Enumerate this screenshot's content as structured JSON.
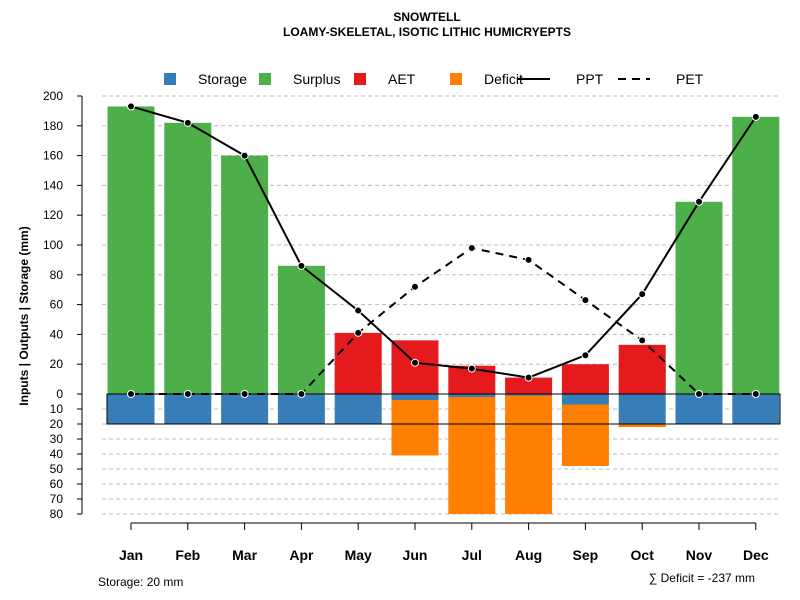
{
  "chart_data": {
    "type": "bar",
    "title": "SNOWTELL",
    "subtitle": "LOAMY-SKELETAL, ISOTIC LITHIC HUMICRYEPTS",
    "ylabel": "Inputs | Outputs | Storage    (mm)",
    "categories": [
      "Jan",
      "Feb",
      "Mar",
      "Apr",
      "May",
      "Jun",
      "Jul",
      "Aug",
      "Sep",
      "Oct",
      "Nov",
      "Dec"
    ],
    "upper_ticks": [
      "0",
      "20",
      "40",
      "60",
      "80",
      "100",
      "120",
      "140",
      "160",
      "180",
      "200"
    ],
    "lower_ticks": [
      "10",
      "20",
      "30",
      "40",
      "50",
      "60",
      "70",
      "80"
    ],
    "ylim_upper": [
      0,
      200
    ],
    "ylim_lower": [
      0,
      80
    ],
    "series": [
      {
        "name": "Storage",
        "color": "#377EB8",
        "values": [
          20,
          20,
          20,
          20,
          20,
          4,
          2,
          1,
          7,
          20,
          20,
          20
        ]
      },
      {
        "name": "Surplus",
        "color": "#4DAF4A",
        "values": [
          193,
          182,
          160,
          86,
          15,
          0,
          0,
          0,
          0,
          20,
          129,
          186
        ]
      },
      {
        "name": "AET",
        "color": "#E41A1C",
        "values": [
          0,
          0,
          0,
          0,
          41,
          36,
          19,
          11,
          20,
          33,
          0,
          0
        ]
      },
      {
        "name": "Deficit",
        "color": "#FF7F00",
        "values": [
          0,
          0,
          0,
          0,
          0,
          37,
          78,
          79,
          41,
          2,
          0,
          0
        ]
      },
      {
        "name": "PPT",
        "color": "#000000",
        "values": [
          193,
          182,
          160,
          86,
          56,
          21,
          17,
          11,
          26,
          67,
          129,
          186
        ]
      },
      {
        "name": "PET",
        "color": "#000000",
        "values": [
          0,
          0,
          0,
          0,
          41,
          72,
          98,
          90,
          63,
          36,
          0,
          0
        ]
      }
    ],
    "legend": {
      "position": "top",
      "items": [
        {
          "label": "Storage",
          "kind": "box",
          "color": "#377EB8"
        },
        {
          "label": "Surplus",
          "kind": "box",
          "color": "#4DAF4A"
        },
        {
          "label": "AET",
          "kind": "box",
          "color": "#E41A1C"
        },
        {
          "label": "Deficit",
          "kind": "box",
          "color": "#FF7F00"
        },
        {
          "label": "PPT",
          "kind": "solid-line",
          "color": "#000000"
        },
        {
          "label": "PET",
          "kind": "dashed-line",
          "color": "#000000"
        }
      ]
    },
    "storage_capacity": 20,
    "storage_note": "Storage: 20 mm",
    "deficit_note": "∑ Deficit = -237 mm",
    "grid": true
  }
}
